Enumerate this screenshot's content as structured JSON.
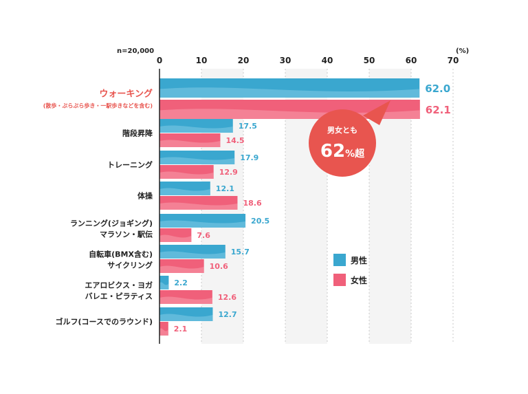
{
  "chart_data": {
    "type": "bar",
    "orientation": "horizontal",
    "sample_note": "n=20,000",
    "unit": "(%)",
    "xlim": [
      0,
      70
    ],
    "ticks": [
      0,
      10,
      20,
      30,
      40,
      50,
      60,
      70
    ],
    "grid": true,
    "legend_position": "right",
    "categories": [
      {
        "lines": [
          "ウォーキング",
          "(散歩・ぶらぶら歩き・一駅歩きなどを含む)"
        ],
        "highlight": true
      },
      {
        "lines": [
          "階段昇降"
        ]
      },
      {
        "lines": [
          "トレーニング"
        ]
      },
      {
        "lines": [
          "体操"
        ]
      },
      {
        "lines": [
          "ランニング(ジョギング)",
          "マラソン・駅伝"
        ]
      },
      {
        "lines": [
          "自転車(BMX含む)",
          "サイクリング"
        ]
      },
      {
        "lines": [
          "エアロビクス・ヨガ",
          "バレエ・ピラティス"
        ]
      },
      {
        "lines": [
          "ゴルフ(コースでのラウンド)"
        ]
      }
    ],
    "series": [
      {
        "name": "男性",
        "color": "#3aa7cf",
        "values": [
          62.0,
          17.5,
          17.9,
          12.1,
          20.5,
          15.7,
          2.2,
          12.7
        ],
        "labels": [
          "62.0",
          "17.5",
          "17.9",
          "12.1",
          "20.5",
          "15.7",
          "2.2",
          "12.7"
        ]
      },
      {
        "name": "女性",
        "color": "#f0607a",
        "values": [
          62.1,
          14.5,
          12.9,
          18.6,
          7.6,
          10.6,
          12.6,
          2.1
        ],
        "labels": [
          "62.1",
          "14.5",
          "12.9",
          "18.6",
          "7.6",
          "10.6",
          "12.6",
          "2.1"
        ]
      }
    ],
    "callout": {
      "line1": "男女とも",
      "big": "62",
      "small": "%超",
      "color": "#e8554f"
    },
    "highlight_color": "#e8554f"
  }
}
